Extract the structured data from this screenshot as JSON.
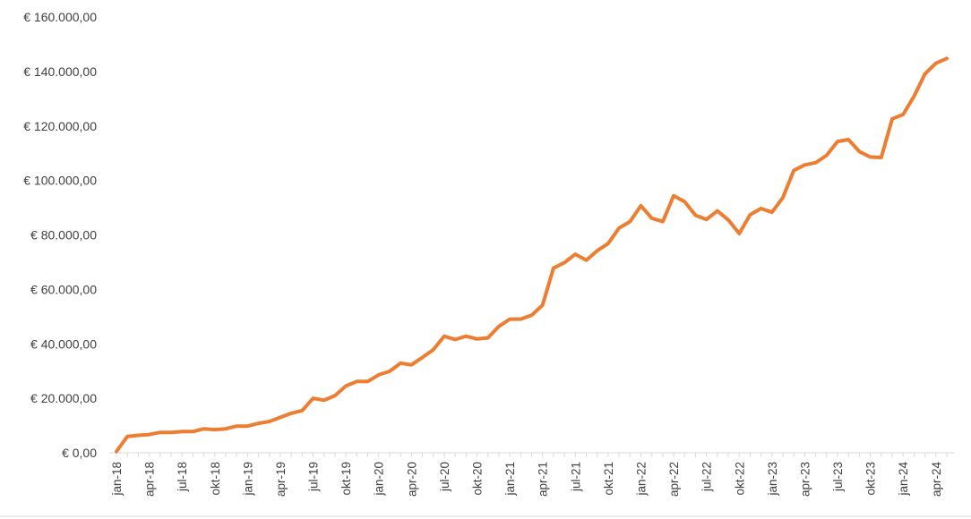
{
  "chart_data": {
    "type": "line",
    "title": "",
    "xlabel": "",
    "ylabel": "",
    "ylim": [
      0,
      160000
    ],
    "grid": false,
    "legend": "none",
    "y_ticks": [
      {
        "value": 0,
        "label": "€ 0,00"
      },
      {
        "value": 20000,
        "label": "€ 20.000,00"
      },
      {
        "value": 40000,
        "label": "€ 40.000,00"
      },
      {
        "value": 60000,
        "label": "€ 60.000,00"
      },
      {
        "value": 80000,
        "label": "€ 80.000,00"
      },
      {
        "value": 100000,
        "label": "€ 100.000,00"
      },
      {
        "value": 120000,
        "label": "€ 120.000,00"
      },
      {
        "value": 140000,
        "label": "€ 140.000,00"
      },
      {
        "value": 160000,
        "label": "€ 160.000,00"
      }
    ],
    "x_ticks": [
      {
        "index": 0,
        "label": "jan-18"
      },
      {
        "index": 3,
        "label": "apr-18"
      },
      {
        "index": 6,
        "label": "jul-18"
      },
      {
        "index": 9,
        "label": "okt-18"
      },
      {
        "index": 12,
        "label": "jan-19"
      },
      {
        "index": 15,
        "label": "apr-19"
      },
      {
        "index": 18,
        "label": "jul-19"
      },
      {
        "index": 21,
        "label": "okt-19"
      },
      {
        "index": 24,
        "label": "jan-20"
      },
      {
        "index": 27,
        "label": "apr-20"
      },
      {
        "index": 30,
        "label": "jul-20"
      },
      {
        "index": 33,
        "label": "okt-20"
      },
      {
        "index": 36,
        "label": "jan-21"
      },
      {
        "index": 39,
        "label": "apr-21"
      },
      {
        "index": 42,
        "label": "jul-21"
      },
      {
        "index": 45,
        "label": "okt-21"
      },
      {
        "index": 48,
        "label": "jan-22"
      },
      {
        "index": 51,
        "label": "apr-22"
      },
      {
        "index": 54,
        "label": "jul-22"
      },
      {
        "index": 57,
        "label": "okt-22"
      },
      {
        "index": 60,
        "label": "jan-23"
      },
      {
        "index": 63,
        "label": "apr-23"
      },
      {
        "index": 66,
        "label": "jul-23"
      },
      {
        "index": 69,
        "label": "okt-23"
      },
      {
        "index": 72,
        "label": "jan-24"
      },
      {
        "index": 75,
        "label": "apr-24"
      }
    ],
    "series": [
      {
        "color": "#ED7D31",
        "values": [
          500,
          6000,
          6400,
          6700,
          7500,
          7500,
          7800,
          7800,
          8800,
          8500,
          8800,
          9800,
          9800,
          10800,
          11500,
          13000,
          14500,
          15500,
          20000,
          19300,
          21000,
          24500,
          26200,
          26200,
          28600,
          29900,
          32900,
          32300,
          35000,
          37800,
          42800,
          41600,
          42800,
          41800,
          42200,
          46400,
          49100,
          49100,
          50500,
          54200,
          67800,
          69800,
          72900,
          70700,
          74200,
          76800,
          82500,
          84900,
          90700,
          86100,
          84900,
          94400,
          92200,
          87200,
          85700,
          88800,
          85500,
          80500,
          87400,
          89700,
          88300,
          93700,
          103700,
          105700,
          106500,
          109200,
          114300,
          115000,
          110600,
          108600,
          108400,
          122600,
          124200,
          130900,
          139100,
          143000,
          144800
        ]
      }
    ]
  }
}
